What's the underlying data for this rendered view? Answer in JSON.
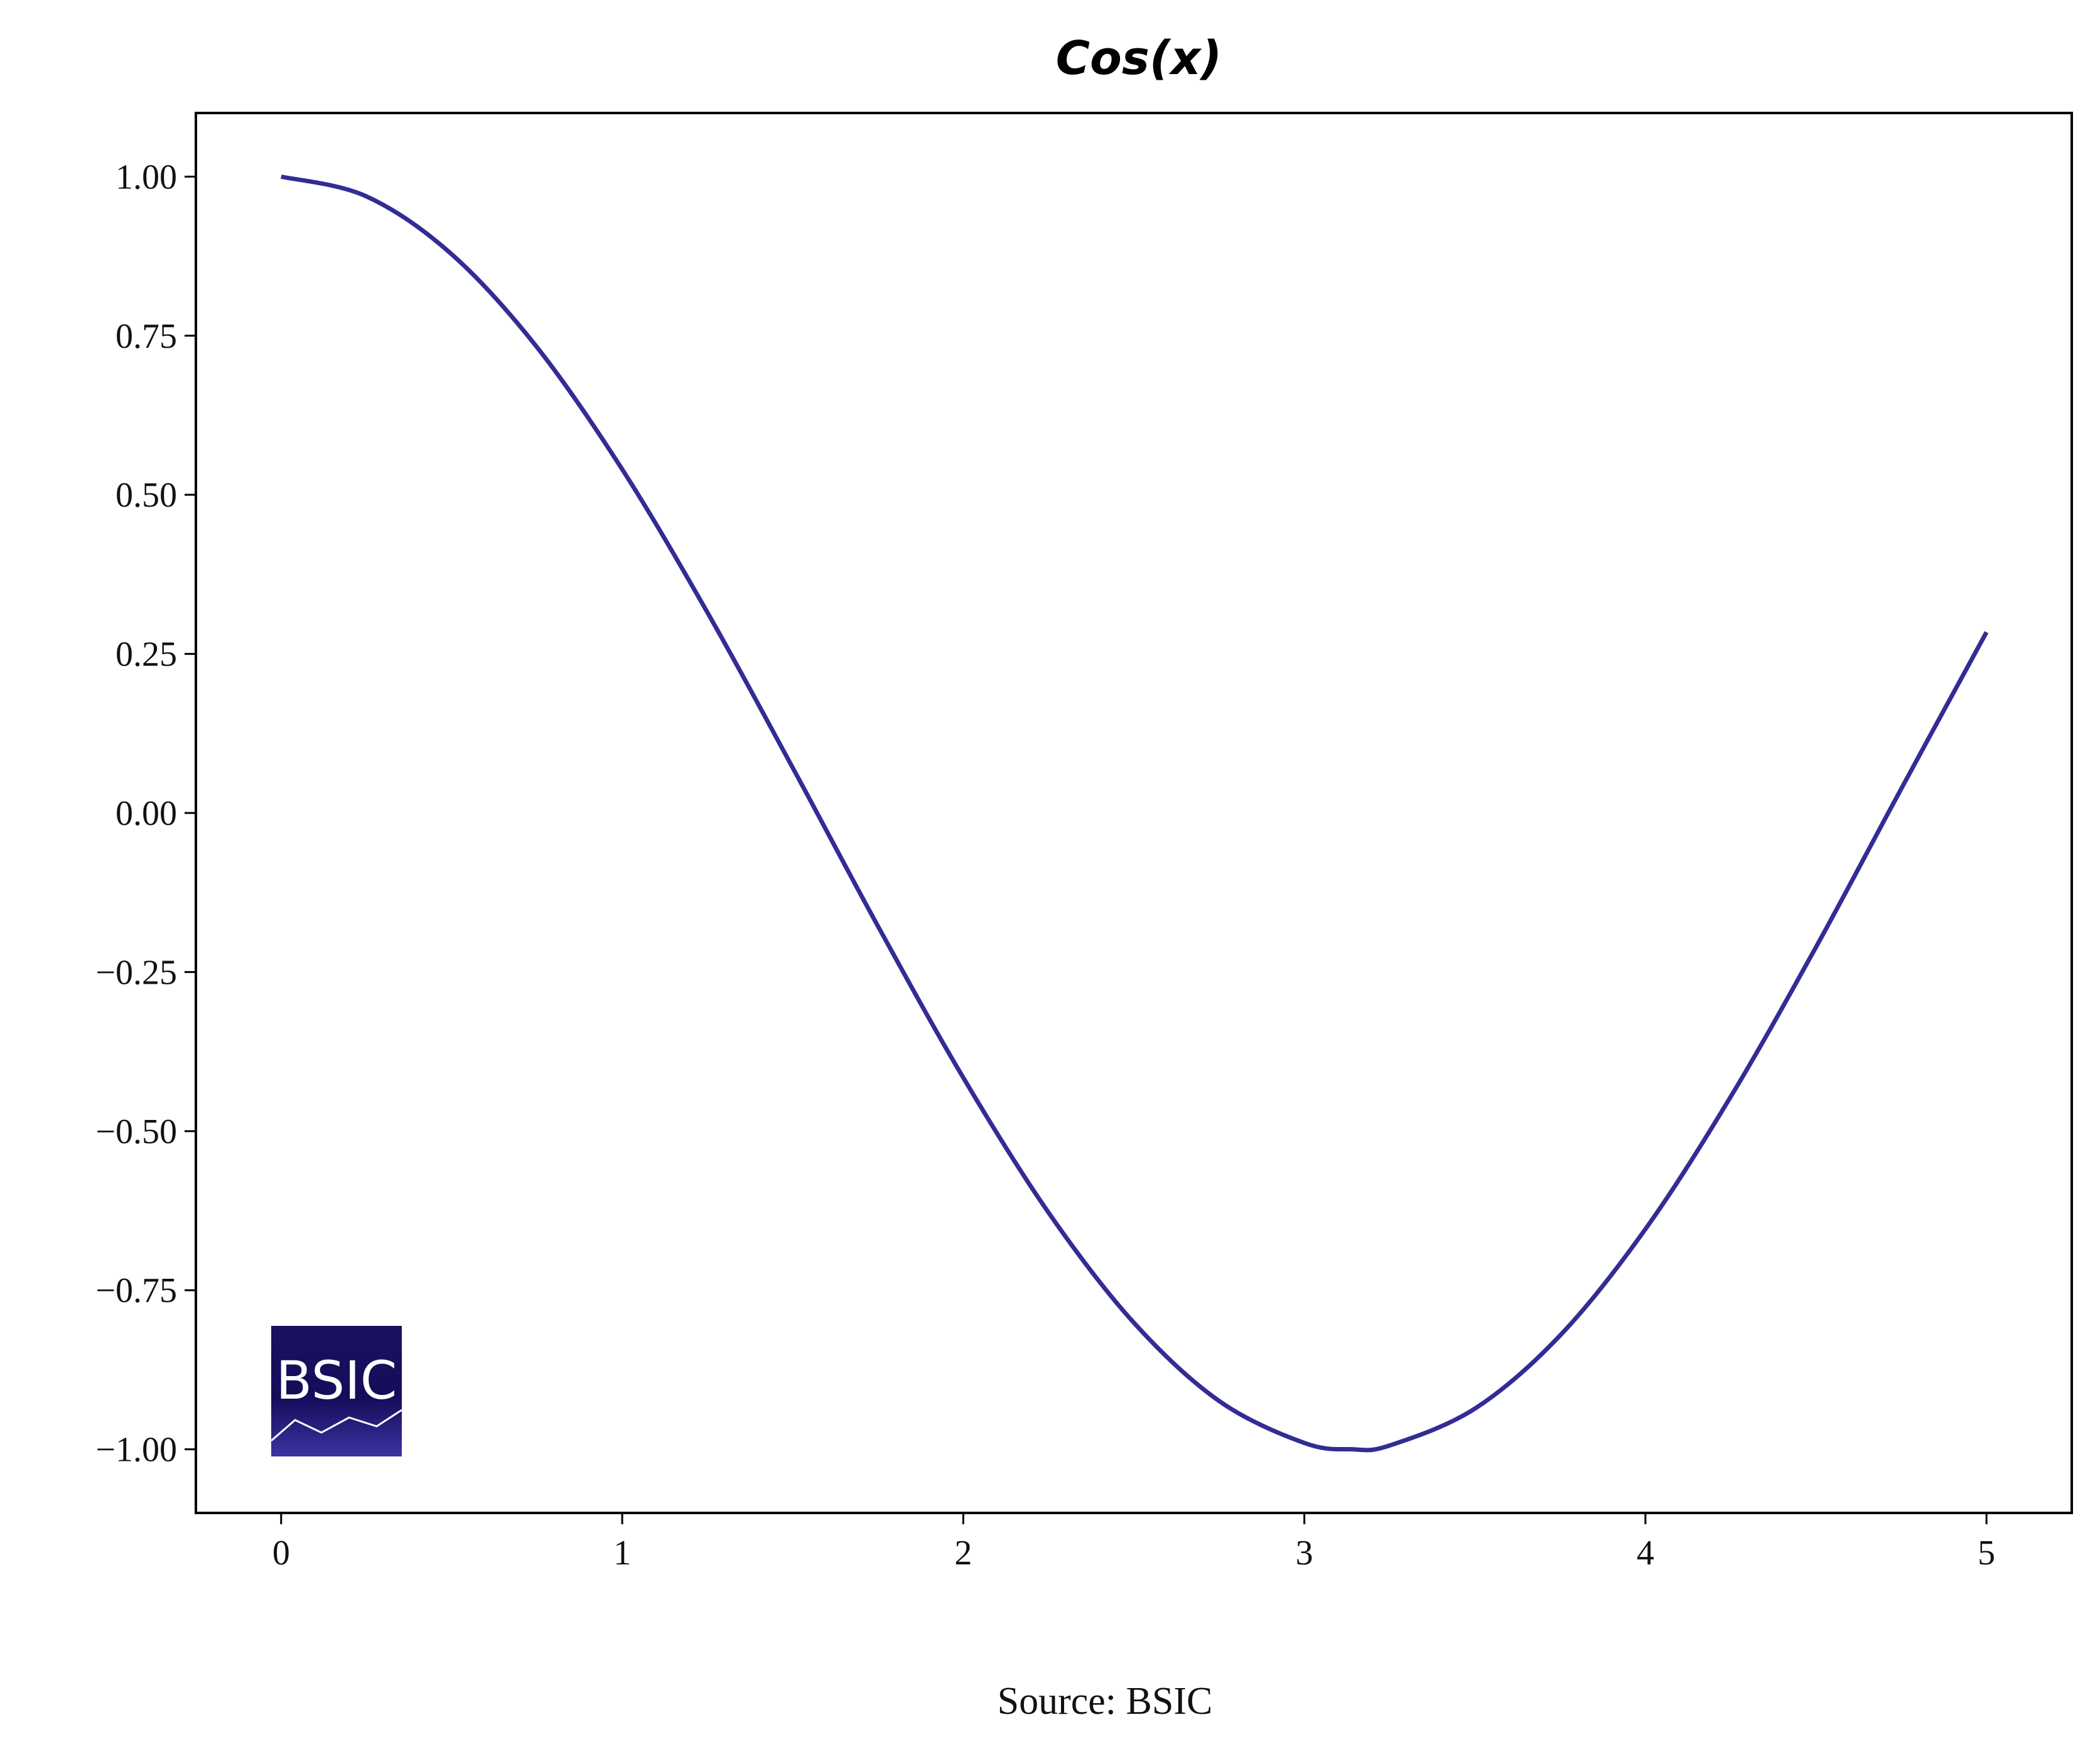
{
  "chart_data": {
    "type": "line",
    "title": "Cos(x)",
    "xlabel": "",
    "ylabel": "",
    "xlim": [
      -0.25,
      5.25
    ],
    "ylim": [
      -1.1,
      1.1
    ],
    "x_ticks": [
      0,
      1,
      2,
      3,
      4,
      5
    ],
    "x_tick_labels": [
      "0",
      "1",
      "2",
      "3",
      "4",
      "5"
    ],
    "y_ticks": [
      1.0,
      0.75,
      0.5,
      0.25,
      0.0,
      -0.25,
      -0.5,
      -0.75,
      -1.0
    ],
    "y_tick_labels": [
      "1.00",
      "0.75",
      "0.50",
      "0.25",
      "0.00",
      "−0.25",
      "−0.50",
      "−0.75",
      "−1.00"
    ],
    "grid": false,
    "series": [
      {
        "color": "#332c94",
        "x": [
          0,
          0.25,
          0.5,
          0.75,
          1.0,
          1.25,
          1.5,
          1.75,
          2.0,
          2.25,
          2.5,
          2.75,
          3.0,
          3.14,
          3.25,
          3.5,
          3.75,
          4.0,
          4.25,
          4.5,
          4.75,
          5.0
        ],
        "y": [
          1.0,
          0.969,
          0.878,
          0.732,
          0.54,
          0.315,
          0.071,
          -0.178,
          -0.416,
          -0.628,
          -0.801,
          -0.924,
          -0.99,
          -1.0,
          -0.994,
          -0.936,
          -0.821,
          -0.654,
          -0.446,
          -0.211,
          0.038,
          0.284
        ]
      }
    ],
    "logo": "BSIC",
    "source": "Source: BSIC"
  }
}
